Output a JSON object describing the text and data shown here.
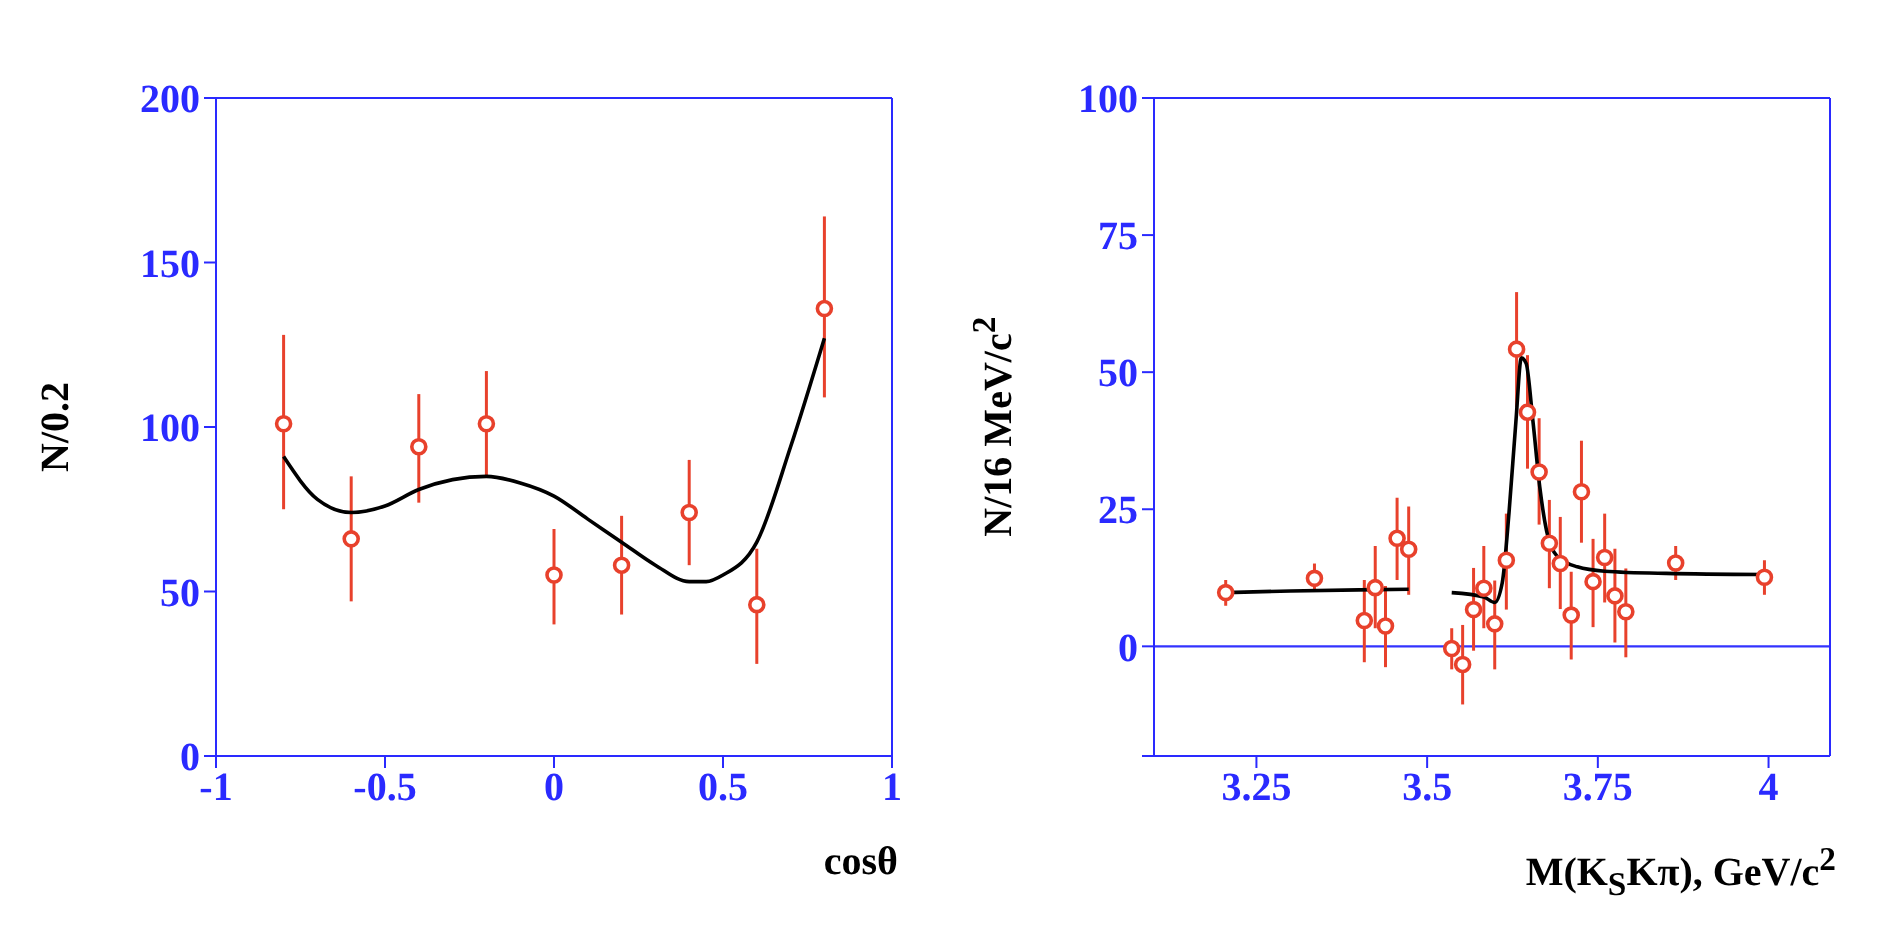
{
  "chart_data": [
    {
      "type": "scatter",
      "xlabel": "cosθ",
      "ylabel": "N/0.2",
      "xlim": [
        -1,
        1
      ],
      "xticks": [
        -1,
        -0.5,
        0,
        0.5,
        1
      ],
      "ylim": [
        0,
        200
      ],
      "yticks": [
        0,
        50,
        100,
        150,
        200
      ],
      "marker": "circle",
      "grid": false,
      "series": [
        {
          "color": "#e8412c",
          "x": [
            -0.8,
            -0.6,
            -0.4,
            -0.2,
            0,
            0.2,
            0.4,
            0.6,
            0.8
          ],
          "values": [
            101,
            66,
            94,
            101,
            55,
            58,
            74,
            46,
            136
          ],
          "errors": [
            [
              75,
              128
            ],
            [
              47,
              85
            ],
            [
              77,
              110
            ],
            [
              85,
              117
            ],
            [
              40,
              69
            ],
            [
              43,
              73
            ],
            [
              58,
              90
            ],
            [
              28,
              63
            ],
            [
              109,
              164
            ]
          ]
        },
        {
          "type": "line",
          "color": "#000000",
          "marker": "none",
          "line_style": "solid",
          "x": [
            -0.8,
            -0.7,
            -0.6,
            -0.5,
            -0.4,
            -0.3,
            -0.2,
            -0.1,
            0,
            0.1,
            0.2,
            0.3,
            0.4,
            0.45,
            0.5,
            0.6,
            0.7,
            0.8
          ],
          "values": [
            91,
            78,
            74,
            76,
            81,
            84,
            85,
            83,
            79,
            72,
            65,
            58,
            53,
            53,
            55,
            65,
            94,
            127
          ]
        }
      ]
    },
    {
      "type": "scatter",
      "xlabel": "M(K$_{S}$Kπ), GeV/c$^{2}$",
      "ylabel": "N/16 MeV/c$^{2}$",
      "xlim": [
        3.1,
        4.09
      ],
      "xticks": [
        3.25,
        3.5,
        3.75,
        4
      ],
      "ylim": [
        -20,
        100
      ],
      "yticks": [
        {
          "value": -20,
          "label": null
        },
        0,
        25,
        50,
        75,
        100
      ],
      "marker": "circle",
      "grid": false,
      "ref_lines": [
        {
          "axis": "y",
          "value": 0,
          "color": "#3333ff"
        }
      ],
      "series": [
        {
          "color": "#e8412c",
          "x": [
            3.205,
            3.335,
            3.408,
            3.424,
            3.439,
            3.456,
            3.473,
            3.536,
            3.552,
            3.568,
            3.583,
            3.599,
            3.616,
            3.631,
            3.647,
            3.664,
            3.679,
            3.695,
            3.711,
            3.726,
            3.743,
            3.76,
            3.775,
            3.791,
            3.864,
            3.994
          ],
          "values": [
            9.8,
            12.4,
            4.7,
            10.7,
            3.7,
            19.7,
            17.7,
            -0.4,
            -3.3,
            6.7,
            10.6,
            4.1,
            15.7,
            54.2,
            42.7,
            31.8,
            18.8,
            15.1,
            5.7,
            28.2,
            11.8,
            16.2,
            9.2,
            6.3,
            15.2,
            12.6
          ],
          "errors": [
            [
              7.4,
              12.1
            ],
            [
              10.1,
              15.1
            ],
            [
              -2.9,
              12.1
            ],
            [
              3.3,
              18.3
            ],
            [
              -3.8,
              11
            ],
            [
              12.1,
              27.1
            ],
            [
              9.4,
              25.5
            ],
            [
              -4.2,
              3.3
            ],
            [
              -10.6,
              3.9
            ],
            [
              -0.8,
              14.3
            ],
            [
              3.3,
              18.3
            ],
            [
              -4.2,
              12
            ],
            [
              6.7,
              24.2
            ],
            [
              43.6,
              64.6
            ],
            [
              32.4,
              53.1
            ],
            [
              22.2,
              41.6
            ],
            [
              10.6,
              26.7
            ],
            [
              6.8,
              23.6
            ],
            [
              -2.4,
              13.6
            ],
            [
              18.9,
              37.5
            ],
            [
              3.5,
              19.6
            ],
            [
              8,
              24.2
            ],
            [
              0.7,
              17.8
            ],
            [
              -2,
              14.2
            ],
            [
              12.1,
              18.3
            ],
            [
              9.4,
              15.7
            ]
          ]
        },
        {
          "type": "line",
          "color": "#000000",
          "marker": "none",
          "line_style": "solid",
          "x": [
            3.205,
            3.3,
            3.4,
            3.473
          ],
          "values": [
            9.8,
            10.1,
            10.3,
            10.4
          ]
        },
        {
          "type": "line",
          "color": "#000000",
          "marker": "none",
          "line_style": "solid",
          "x": [
            3.536,
            3.583,
            3.599,
            3.61,
            3.62,
            3.63,
            3.638,
            3.645,
            3.655,
            3.665,
            3.675,
            3.69,
            3.72,
            3.76,
            3.85,
            3.994
          ],
          "values": [
            9.8,
            9.0,
            8.0,
            11.6,
            24.5,
            41,
            52.6,
            51.6,
            41,
            29,
            21,
            16.5,
            14.5,
            13.7,
            13.3,
            13.1
          ]
        }
      ]
    }
  ]
}
